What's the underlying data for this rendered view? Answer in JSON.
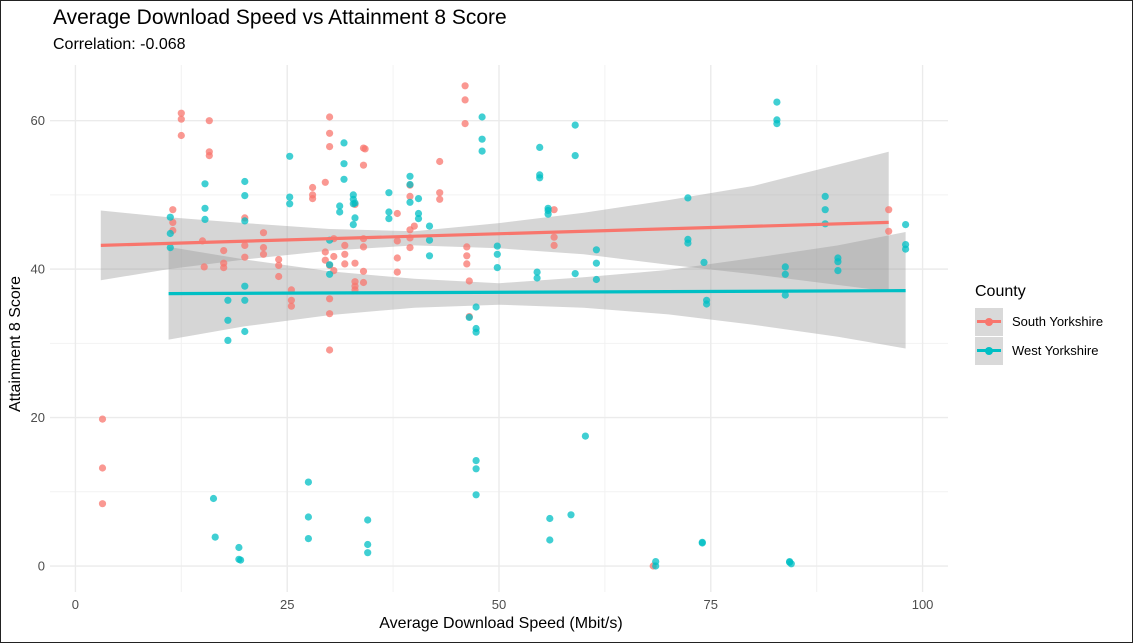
{
  "chart_data": {
    "type": "scatter",
    "title": "Average Download Speed vs Attainment 8 Score",
    "subtitle": "Correlation: -0.068",
    "xlabel": "Average Download Speed (Mbit/s)",
    "ylabel": "Attainment 8 Score",
    "xlim": [
      -3,
      103
    ],
    "ylim": [
      -3.5,
      67.5
    ],
    "xticks": [
      0,
      25,
      50,
      75,
      100
    ],
    "yticks": [
      0,
      20,
      40,
      60
    ],
    "grid": true,
    "legend_title": "County",
    "legend_position": "right",
    "series": [
      {
        "name": "South Yorkshire",
        "color": "#F8766D",
        "trend": {
          "x": [
            3,
            96
          ],
          "y": [
            43.2,
            46.3
          ]
        },
        "band": {
          "x": [
            3,
            11,
            20,
            30,
            40,
            50,
            60,
            70,
            80,
            96
          ],
          "lower": [
            38.5,
            40.0,
            41.3,
            42.5,
            43.2,
            42.8,
            42.0,
            40.6,
            39.3,
            37.0
          ],
          "upper": [
            47.9,
            47.0,
            46.2,
            45.4,
            45.1,
            46.2,
            47.6,
            49.3,
            51.2,
            55.8
          ]
        },
        "points": [
          [
            3.2,
            19.8
          ],
          [
            3.2,
            13.2
          ],
          [
            3.2,
            8.4
          ],
          [
            11.5,
            48.0
          ],
          [
            11.5,
            46.3
          ],
          [
            11.5,
            45.2
          ],
          [
            12.5,
            61.0
          ],
          [
            12.5,
            60.2
          ],
          [
            12.5,
            58.0
          ],
          [
            15.0,
            43.8
          ],
          [
            15.2,
            40.3
          ],
          [
            15.8,
            60.0
          ],
          [
            15.8,
            55.8
          ],
          [
            15.8,
            55.3
          ],
          [
            17.5,
            42.5
          ],
          [
            17.5,
            40.8
          ],
          [
            17.5,
            40.2
          ],
          [
            20.0,
            46.9
          ],
          [
            20.0,
            43.2
          ],
          [
            20.0,
            41.6
          ],
          [
            22.2,
            44.9
          ],
          [
            22.2,
            42.9
          ],
          [
            22.2,
            42.0
          ],
          [
            24.0,
            41.3
          ],
          [
            24.0,
            40.5
          ],
          [
            24.0,
            39.0
          ],
          [
            25.5,
            37.2
          ],
          [
            25.5,
            35.8
          ],
          [
            25.5,
            35.0
          ],
          [
            28.0,
            51.0
          ],
          [
            28.0,
            50.0
          ],
          [
            28.0,
            49.5
          ],
          [
            29.5,
            51.7
          ],
          [
            29.5,
            42.3
          ],
          [
            29.5,
            41.2
          ],
          [
            30.0,
            60.5
          ],
          [
            30.0,
            58.3
          ],
          [
            30.0,
            56.5
          ],
          [
            30.0,
            40.5
          ],
          [
            30.0,
            36.0
          ],
          [
            30.0,
            34.0
          ],
          [
            30.0,
            29.1
          ],
          [
            30.5,
            44.1
          ],
          [
            30.5,
            41.7
          ],
          [
            30.5,
            39.8
          ],
          [
            31.8,
            43.2
          ],
          [
            31.8,
            42.0
          ],
          [
            31.8,
            40.7
          ],
          [
            33.0,
            48.7
          ],
          [
            33.0,
            40.8
          ],
          [
            33.0,
            38.3
          ],
          [
            33.0,
            37.7
          ],
          [
            33.0,
            37.2
          ],
          [
            34.0,
            56.3
          ],
          [
            34.0,
            54.0
          ],
          [
            34.0,
            44.1
          ],
          [
            34.0,
            43.0
          ],
          [
            34.0,
            39.7
          ],
          [
            34.0,
            38.2
          ],
          [
            34.2,
            56.2
          ],
          [
            38.0,
            47.5
          ],
          [
            38.0,
            43.8
          ],
          [
            38.0,
            41.5
          ],
          [
            38.0,
            39.6
          ],
          [
            39.5,
            51.3
          ],
          [
            39.5,
            49.8
          ],
          [
            39.5,
            45.3
          ],
          [
            39.5,
            44.2
          ],
          [
            39.5,
            42.9
          ],
          [
            40.0,
            45.8
          ],
          [
            43.0,
            54.5
          ],
          [
            43.0,
            50.3
          ],
          [
            43.0,
            49.4
          ],
          [
            46.0,
            64.7
          ],
          [
            46.0,
            62.8
          ],
          [
            46.0,
            59.6
          ],
          [
            46.2,
            43.0
          ],
          [
            46.2,
            41.8
          ],
          [
            46.2,
            40.7
          ],
          [
            46.5,
            38.4
          ],
          [
            46.5,
            33.6
          ],
          [
            56.5,
            48.0
          ],
          [
            56.5,
            44.3
          ],
          [
            56.5,
            43.2
          ],
          [
            68.2,
            0.0
          ],
          [
            96.0,
            48.0
          ],
          [
            96.0,
            45.1
          ]
        ]
      },
      {
        "name": "West Yorkshire",
        "color": "#00BFC4",
        "trend": {
          "x": [
            11,
            98
          ],
          "y": [
            36.7,
            37.1
          ]
        },
        "band": {
          "x": [
            11,
            20,
            30,
            40,
            50,
            60,
            70,
            80,
            90,
            98
          ],
          "lower": [
            30.5,
            32.3,
            33.8,
            34.8,
            35.2,
            34.8,
            33.9,
            32.5,
            30.9,
            29.3
          ],
          "upper": [
            43.0,
            41.3,
            39.7,
            38.7,
            38.1,
            38.9,
            39.9,
            41.5,
            43.2,
            45.0
          ]
        },
        "points": [
          [
            11.2,
            47.0
          ],
          [
            11.2,
            44.8
          ],
          [
            11.2,
            42.9
          ],
          [
            15.3,
            51.5
          ],
          [
            15.3,
            48.2
          ],
          [
            15.3,
            46.7
          ],
          [
            16.3,
            9.1
          ],
          [
            16.5,
            3.9
          ],
          [
            18.0,
            35.8
          ],
          [
            18.0,
            33.1
          ],
          [
            18.0,
            30.4
          ],
          [
            19.3,
            2.5
          ],
          [
            19.3,
            0.9
          ],
          [
            19.5,
            0.8
          ],
          [
            20.0,
            51.8
          ],
          [
            20.0,
            49.9
          ],
          [
            20.0,
            46.5
          ],
          [
            20.0,
            37.7
          ],
          [
            20.0,
            35.8
          ],
          [
            20.0,
            31.6
          ],
          [
            25.3,
            55.2
          ],
          [
            25.3,
            49.7
          ],
          [
            25.3,
            48.8
          ],
          [
            27.5,
            11.3
          ],
          [
            27.5,
            6.6
          ],
          [
            27.5,
            3.7
          ],
          [
            30.0,
            43.9
          ],
          [
            30.0,
            40.6
          ],
          [
            30.0,
            39.3
          ],
          [
            31.2,
            48.5
          ],
          [
            31.2,
            47.7
          ],
          [
            31.7,
            57.0
          ],
          [
            31.7,
            54.2
          ],
          [
            31.7,
            52.1
          ],
          [
            32.8,
            50.0
          ],
          [
            32.8,
            49.4
          ],
          [
            32.8,
            48.8
          ],
          [
            32.8,
            46.0
          ],
          [
            33.0,
            46.9
          ],
          [
            33.0,
            48.9
          ],
          [
            34.5,
            6.2
          ],
          [
            34.5,
            2.9
          ],
          [
            34.5,
            1.8
          ],
          [
            37.0,
            50.3
          ],
          [
            37.0,
            47.7
          ],
          [
            37.0,
            46.8
          ],
          [
            39.5,
            52.5
          ],
          [
            39.5,
            51.4
          ],
          [
            39.5,
            49.0
          ],
          [
            40.5,
            49.5
          ],
          [
            40.5,
            47.5
          ],
          [
            40.5,
            46.8
          ],
          [
            41.8,
            45.8
          ],
          [
            41.8,
            43.9
          ],
          [
            41.8,
            41.8
          ],
          [
            46.5,
            33.5
          ],
          [
            47.3,
            34.9
          ],
          [
            47.3,
            32.0
          ],
          [
            47.3,
            31.5
          ],
          [
            47.3,
            14.2
          ],
          [
            47.3,
            13.1
          ],
          [
            47.3,
            9.6
          ],
          [
            48.0,
            60.5
          ],
          [
            48.0,
            57.5
          ],
          [
            48.0,
            55.9
          ],
          [
            49.8,
            43.1
          ],
          [
            49.8,
            42.0
          ],
          [
            49.8,
            40.2
          ],
          [
            54.5,
            39.6
          ],
          [
            54.5,
            38.8
          ],
          [
            54.8,
            56.4
          ],
          [
            54.8,
            52.7
          ],
          [
            54.8,
            52.3
          ],
          [
            55.8,
            48.2
          ],
          [
            55.8,
            47.9
          ],
          [
            55.8,
            47.4
          ],
          [
            56.0,
            6.4
          ],
          [
            56.0,
            3.5
          ],
          [
            58.5,
            6.9
          ],
          [
            59.0,
            59.4
          ],
          [
            59.0,
            55.3
          ],
          [
            59.0,
            39.4
          ],
          [
            60.2,
            17.5
          ],
          [
            61.5,
            42.6
          ],
          [
            61.5,
            40.8
          ],
          [
            61.5,
            38.6
          ],
          [
            68.5,
            0.6
          ],
          [
            68.5,
            0.0
          ],
          [
            72.3,
            49.6
          ],
          [
            72.3,
            44.0
          ],
          [
            72.3,
            43.5
          ],
          [
            74.0,
            3.2
          ],
          [
            74.0,
            3.1
          ],
          [
            74.2,
            40.9
          ],
          [
            74.5,
            35.8
          ],
          [
            74.5,
            35.3
          ],
          [
            82.8,
            62.5
          ],
          [
            82.8,
            60.1
          ],
          [
            82.8,
            59.6
          ],
          [
            83.8,
            40.3
          ],
          [
            83.8,
            39.3
          ],
          [
            83.8,
            36.5
          ],
          [
            84.3,
            0.6
          ],
          [
            84.3,
            0.5
          ],
          [
            84.5,
            0.3
          ],
          [
            88.5,
            49.8
          ],
          [
            88.5,
            48.0
          ],
          [
            88.5,
            46.1
          ],
          [
            90.0,
            41.5
          ],
          [
            90.0,
            41.0
          ],
          [
            90.0,
            39.8
          ],
          [
            98.0,
            46.0
          ],
          [
            98.0,
            43.3
          ],
          [
            98.0,
            42.7
          ]
        ]
      }
    ]
  }
}
